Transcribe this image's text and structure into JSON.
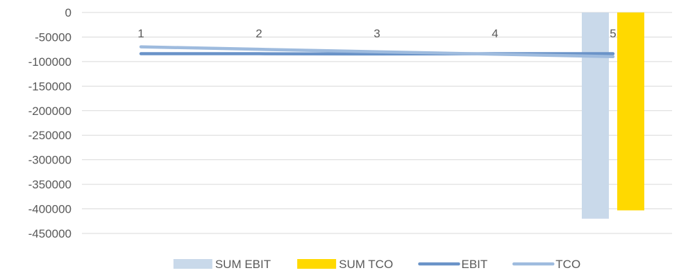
{
  "chart_data": {
    "type": "bar",
    "categories": [
      "1",
      "2",
      "3",
      "4",
      "5"
    ],
    "ylim": [
      -450000,
      0
    ],
    "y_ticks": [
      0,
      -50000,
      -100000,
      -150000,
      -200000,
      -250000,
      -300000,
      -350000,
      -400000,
      -450000
    ],
    "y_tick_labels": [
      "0",
      "-50000",
      "-100000",
      "-150000",
      "-200000",
      "-250000",
      "-300000",
      "-350000",
      "-400000",
      "-450000"
    ],
    "grid": true,
    "legend_position": "bottom",
    "series": [
      {
        "name": "SUM EBIT",
        "kind": "bar",
        "color": "#c9d9ea",
        "values": [
          null,
          null,
          null,
          null,
          -420000
        ]
      },
      {
        "name": "SUM TCO",
        "kind": "bar",
        "color": "#ffd900",
        "values": [
          null,
          null,
          null,
          null,
          -403000
        ]
      },
      {
        "name": "EBIT",
        "kind": "line",
        "color": "#6a93c8",
        "values": [
          -84000,
          -84000,
          -84500,
          -84000,
          -84000
        ]
      },
      {
        "name": "TCO",
        "kind": "line",
        "color": "#9ebbde",
        "values": [
          -70000,
          -75000,
          -80000,
          -85000,
          -90000
        ]
      }
    ]
  }
}
